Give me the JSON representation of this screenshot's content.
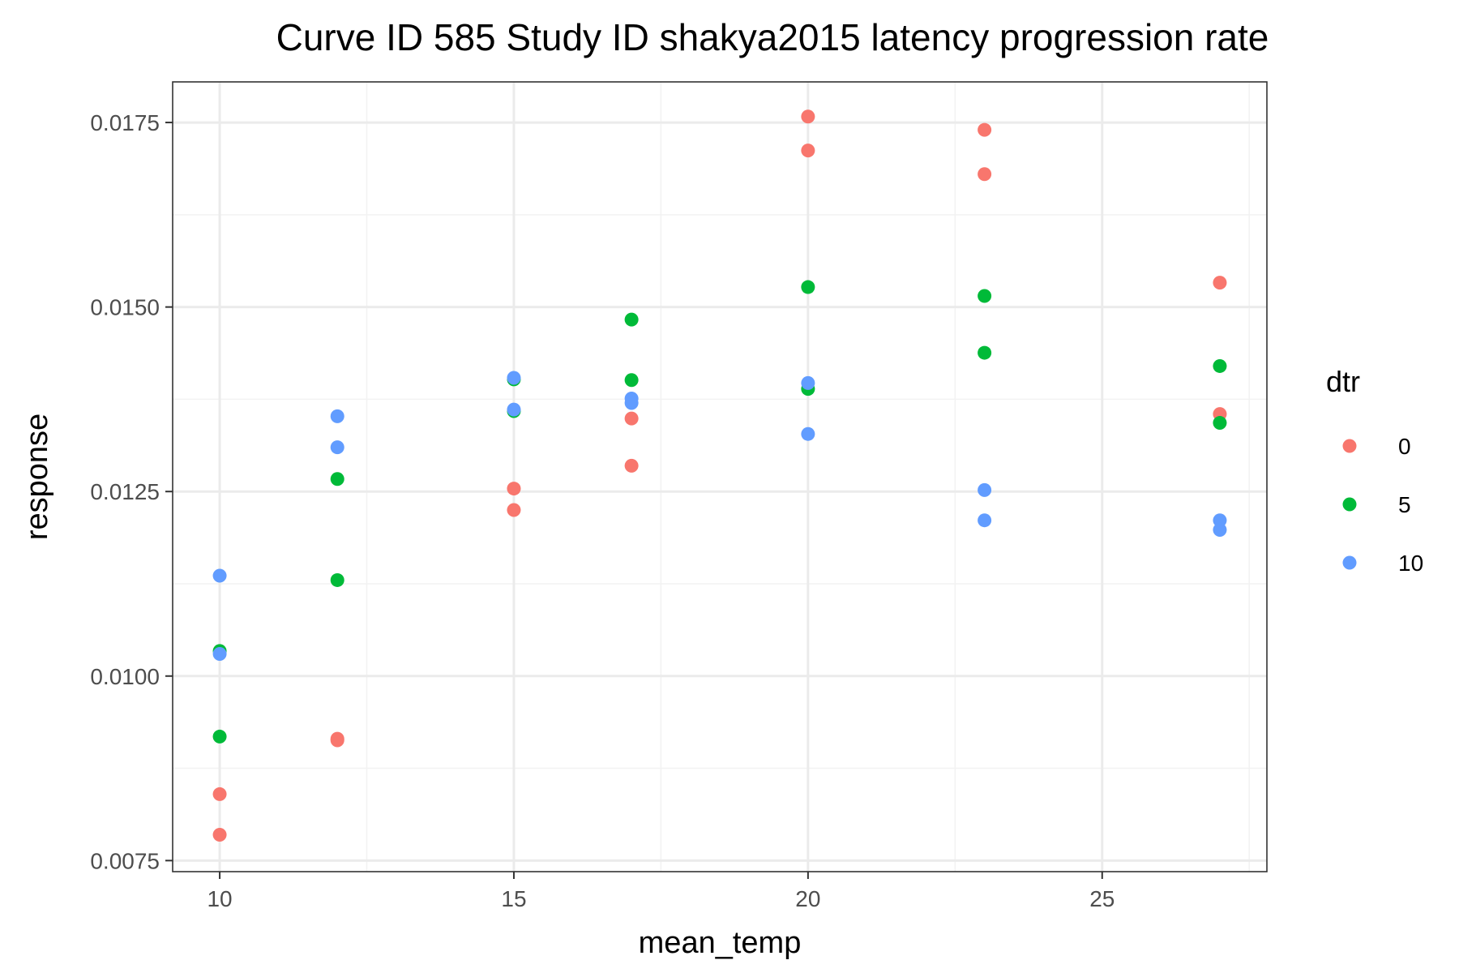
{
  "chart_data": {
    "type": "scatter",
    "title": "Curve ID 585 Study ID shakya2015 latency progression rate",
    "xlabel": "mean_temp",
    "ylabel": "response",
    "xlim": [
      9.2,
      27.8
    ],
    "ylim": [
      0.00735,
      0.01805
    ],
    "x_ticks": [
      10,
      15,
      20,
      25
    ],
    "x_minor_ticks": [
      12.5,
      17.5,
      22.5,
      27.5
    ],
    "x_tick_labels": [
      "10",
      "15",
      "20",
      "25"
    ],
    "y_ticks": [
      0.0075,
      0.01,
      0.0125,
      0.015,
      0.0175
    ],
    "y_minor_ticks": [
      0.00875,
      0.01125,
      0.01375,
      0.01625
    ],
    "y_tick_labels": [
      "0.0075",
      "0.0100",
      "0.0125",
      "0.0150",
      "0.0175"
    ],
    "grid": true,
    "legend": {
      "title": "dtr",
      "position": "right"
    },
    "series": [
      {
        "name": "0",
        "color": "#F8766D",
        "points": [
          [
            10,
            0.0084
          ],
          [
            10,
            0.00785
          ],
          [
            12,
            0.00915
          ],
          [
            12,
            0.00913
          ],
          [
            15,
            0.01254
          ],
          [
            15,
            0.01225
          ],
          [
            17,
            0.01349
          ],
          [
            17,
            0.01285
          ],
          [
            20,
            0.01758
          ],
          [
            20,
            0.01712
          ],
          [
            23,
            0.0174
          ],
          [
            23,
            0.0168
          ],
          [
            27,
            0.01533
          ],
          [
            27,
            0.01355
          ]
        ]
      },
      {
        "name": "5",
        "color": "#00BA38",
        "points": [
          [
            10,
            0.01034
          ],
          [
            10,
            0.00918
          ],
          [
            12,
            0.01267
          ],
          [
            12,
            0.0113
          ],
          [
            15,
            0.01402
          ],
          [
            15,
            0.01359
          ],
          [
            17,
            0.01483
          ],
          [
            17,
            0.01401
          ],
          [
            20,
            0.01527
          ],
          [
            20,
            0.01389
          ],
          [
            23,
            0.01515
          ],
          [
            23,
            0.01438
          ],
          [
            27,
            0.0142
          ],
          [
            27,
            0.01343
          ]
        ]
      },
      {
        "name": "10",
        "color": "#619CFF",
        "points": [
          [
            10,
            0.01136
          ],
          [
            10,
            0.0103
          ],
          [
            12,
            0.01352
          ],
          [
            12,
            0.0131
          ],
          [
            15,
            0.01404
          ],
          [
            15,
            0.01361
          ],
          [
            17,
            0.01376
          ],
          [
            17,
            0.0137
          ],
          [
            20,
            0.01397
          ],
          [
            20,
            0.01328
          ],
          [
            23,
            0.01252
          ],
          [
            23,
            0.01211
          ],
          [
            27,
            0.01211
          ],
          [
            27,
            0.01198
          ]
        ]
      }
    ],
    "colors": {
      "panel_border": "#333333",
      "grid_major": "#EBEBEB",
      "grid_minor": "#F2F2F2",
      "tick_text": "#4D4D4D"
    }
  }
}
